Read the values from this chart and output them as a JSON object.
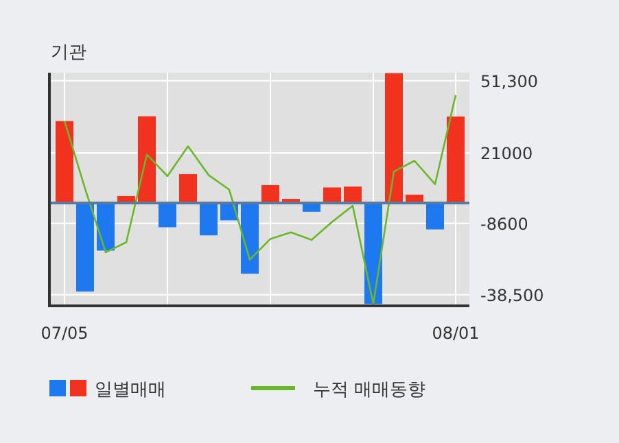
{
  "chart_data": {
    "type": "bar",
    "title": "기관",
    "categories": [
      "07/05",
      null,
      null,
      null,
      null,
      null,
      null,
      null,
      null,
      null,
      null,
      null,
      null,
      null,
      null,
      null,
      null,
      null,
      null,
      "08/01"
    ],
    "series": [
      {
        "name": "일별매매",
        "colors": [
          "#f0321e",
          "#1e78f0",
          "#1e78f0",
          "#f0321e",
          "#f0321e",
          "#1e78f0",
          "#f0321e",
          "#1e78f0",
          "#1e78f0",
          "#1e78f0",
          "#f0321e",
          "#f0321e",
          "#1e78f0",
          "#f0321e",
          "#f0321e",
          "#1e78f0",
          "#f0321e",
          "#f0321e",
          "#1e78f0",
          "#f0321e"
        ],
        "values": [
          34400,
          -37200,
          -20000,
          2900,
          36400,
          -10200,
          12100,
          -13600,
          -7300,
          -29700,
          7500,
          1700,
          -3700,
          6500,
          6900,
          -42400,
          54500,
          3500,
          -11100,
          36300
        ]
      },
      {
        "name": "누적 매매동향",
        "type": "line",
        "color": "#6ab82a",
        "values": [
          34400,
          6000,
          -20700,
          -16500,
          20300,
          11300,
          23800,
          11700,
          5600,
          -23800,
          -15100,
          -12300,
          -15500,
          -7900,
          -1200,
          -42400,
          13200,
          17700,
          7900,
          45300
        ]
      }
    ],
    "ylim": [
      -43200,
      54700
    ],
    "yticks": [
      {
        "value": 51300,
        "label": "51,300"
      },
      21000,
      -8600,
      {
        "value": -38500,
        "label": "-38,500"
      }
    ],
    "ref_lines": [
      {
        "axis": "y",
        "value": 0,
        "color": "#5a7aa0"
      }
    ],
    "grid": true,
    "legend": "bottom"
  }
}
